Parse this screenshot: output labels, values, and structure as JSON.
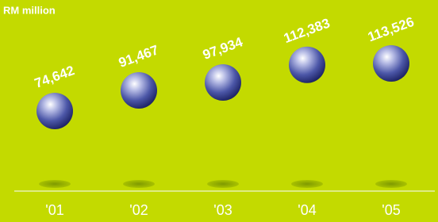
{
  "chart_data": {
    "type": "bubble-column",
    "title": "RM million",
    "categories": [
      "'01",
      "'02",
      "'03",
      "'04",
      "'05"
    ],
    "values": [
      74642,
      91467,
      97934,
      112383,
      113526
    ],
    "value_labels": [
      "74,642",
      "91,467",
      "97,934",
      "112,383",
      "113,526"
    ],
    "color": "#3c4aa0"
  }
}
